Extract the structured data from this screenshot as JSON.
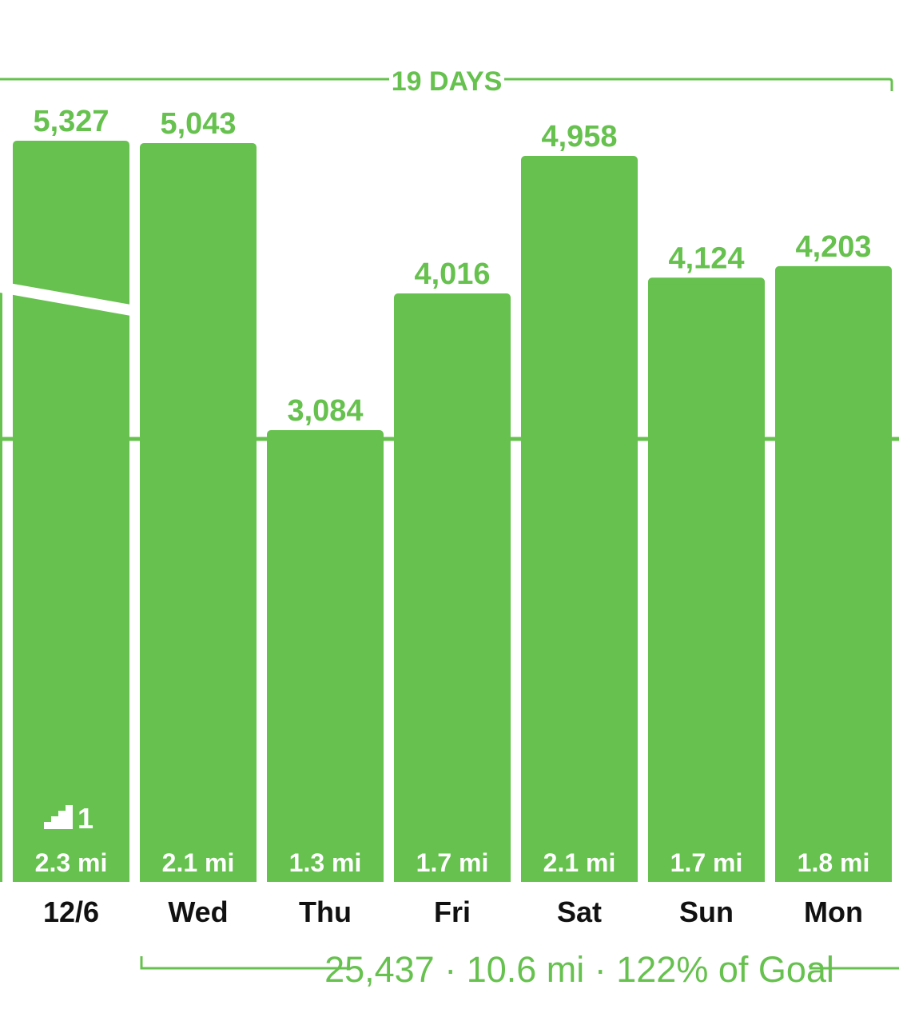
{
  "colors": {
    "bar": "#66c14e",
    "accent_text": "#66c14e",
    "axis_text": "#111111",
    "bar_text": "#ffffff",
    "link": "#1f4fa0"
  },
  "streak": {
    "label": "19 DAYS"
  },
  "summary": {
    "label": "25,437 · 10.6 mi · 122% of Goal"
  },
  "floors": {
    "icon": "stairs-icon",
    "count": "1"
  },
  "chart_data": {
    "type": "bar",
    "categories": [
      "12/6",
      "Wed",
      "Thu",
      "Fri",
      "Sat",
      "Sun",
      "Mon"
    ],
    "values": [
      5327,
      5043,
      3084,
      4016,
      4958,
      4124,
      4203
    ],
    "value_labels": [
      "5,327",
      "5,043",
      "3,084",
      "4,016",
      "4,958",
      "4,124",
      "4,203"
    ],
    "distance_labels": [
      "2.3 mi",
      "2.1 mi",
      "1.3 mi",
      "1.7 mi",
      "2.1 mi",
      "1.7 mi",
      "1.8 mi"
    ],
    "goal_line": 3000,
    "y_axis_broken": true,
    "ylim": [
      0,
      5327
    ],
    "grid": false
  }
}
